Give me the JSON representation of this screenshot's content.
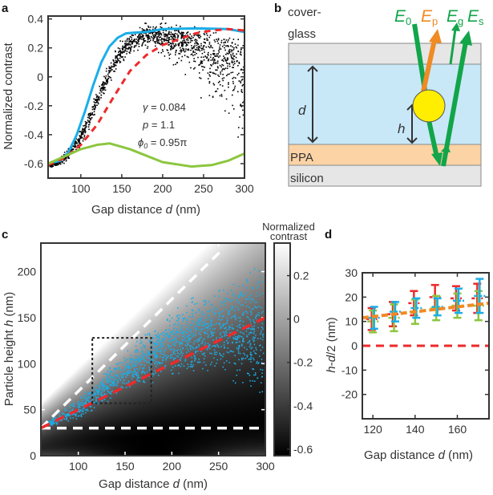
{
  "panels": {
    "a": "a",
    "b": "b",
    "c": "c",
    "d": "d"
  },
  "colors": {
    "black": "#000000",
    "blue": "#1aaee8",
    "red": "#ee2a2a",
    "green": "#8cc63f",
    "orange": "#f08a24",
    "diagram_green": "#12a54a",
    "yellow": "#ffee00"
  },
  "chart_data": [
    {
      "id": "a",
      "type": "line",
      "xlabel_pre": "Gap distance ",
      "xlabel_var": "d",
      "xlabel_post": " (nm)",
      "ylabel": "Normalized contrast",
      "xlim": [
        60,
        300
      ],
      "ylim": [
        -0.7,
        0.42
      ],
      "xticks": [
        100,
        150,
        200,
        250,
        300
      ],
      "yticks": [
        0.4,
        0.2,
        0,
        -0.2,
        -0.4,
        -0.6
      ],
      "annotations": [
        {
          "var": "γ",
          "text": " = 0.084"
        },
        {
          "var": "p",
          "text": " = 1.1"
        },
        {
          "var": "ϕ",
          "sub": "0",
          "text": " = 0.95π"
        }
      ],
      "scatter": {
        "color": "black",
        "x": [
          62,
          70,
          80,
          90,
          100,
          110,
          120,
          130,
          140,
          150,
          160,
          175,
          190,
          200,
          220,
          240,
          260,
          280,
          300
        ],
        "y": [
          -0.61,
          -0.6,
          -0.56,
          -0.5,
          -0.42,
          -0.3,
          -0.17,
          -0.03,
          0.09,
          0.17,
          0.23,
          0.28,
          0.31,
          0.32,
          0.31,
          0.3,
          0.28,
          0.25,
          0.22
        ],
        "spread": [
          0.01,
          0.015,
          0.02,
          0.03,
          0.04,
          0.05,
          0.05,
          0.05,
          0.05,
          0.05,
          0.05,
          0.05,
          0.06,
          0.09,
          0.15,
          0.2,
          0.3,
          0.4,
          0.45
        ]
      },
      "series": [
        {
          "color": "blue",
          "style": "solid",
          "x": [
            60,
            75,
            85,
            95,
            105,
            115,
            125,
            135,
            145,
            155,
            165,
            180,
            200,
            240,
            280,
            300
          ],
          "y": [
            -0.6,
            -0.58,
            -0.52,
            -0.4,
            -0.24,
            -0.06,
            0.1,
            0.21,
            0.27,
            0.3,
            0.305,
            0.31,
            0.33,
            0.335,
            0.33,
            0.31
          ]
        },
        {
          "color": "red",
          "style": "dashed",
          "x": [
            60,
            80,
            100,
            120,
            140,
            160,
            180,
            200,
            220,
            240,
            260,
            280,
            300
          ],
          "y": [
            -0.61,
            -0.56,
            -0.47,
            -0.33,
            -0.14,
            0.04,
            0.15,
            0.22,
            0.26,
            0.3,
            0.32,
            0.33,
            0.32
          ]
        },
        {
          "color": "green",
          "style": "solid",
          "x": [
            60,
            80,
            100,
            120,
            135,
            160,
            200,
            235,
            260,
            280,
            300
          ],
          "y": [
            -0.6,
            -0.55,
            -0.5,
            -0.47,
            -0.46,
            -0.5,
            -0.59,
            -0.62,
            -0.61,
            -0.58,
            -0.53
          ]
        }
      ]
    },
    {
      "id": "c",
      "type": "heatmap",
      "xlabel_pre": "Gap distance ",
      "xlabel_var": "d",
      "xlabel_post": " (nm)",
      "ylabel_pre": "Particle height ",
      "ylabel_var": "h",
      "ylabel_post": " (nm)",
      "xlim": [
        60,
        300
      ],
      "ylim": [
        0,
        231
      ],
      "xticks": [
        100,
        150,
        200,
        250,
        300
      ],
      "yticks": [
        0,
        50,
        100,
        150,
        200
      ],
      "colorbar": {
        "label_line1": "Normalized",
        "label_line2": "contrast",
        "range": [
          -0.63,
          0.35
        ],
        "ticks": [
          0.2,
          0,
          -0.2,
          -0.4,
          -0.6
        ],
        "colormap": "gray"
      },
      "lines": [
        {
          "name": "h = d - 30",
          "color": "white",
          "style": "dashed",
          "x": [
            60,
            255
          ],
          "y": [
            30,
            225
          ]
        },
        {
          "name": "h = 30",
          "color": "white",
          "style": "dashed",
          "x": [
            60,
            300
          ],
          "y": [
            30,
            30
          ]
        },
        {
          "name": "h = d/2",
          "color": "red",
          "style": "dashed",
          "x": [
            60,
            300
          ],
          "y": [
            30,
            150
          ]
        }
      ],
      "box": {
        "x": [
          115,
          178
        ],
        "y": [
          57,
          128
        ],
        "color": "black",
        "style": "dotted"
      },
      "scatter": {
        "color": "blue",
        "envelope_x": [
          60,
          100,
          150,
          200,
          250,
          300
        ],
        "envelope_hmin": [
          30,
          38,
          68,
          85,
          90,
          55
        ],
        "envelope_hmax": [
          32,
          62,
          115,
          160,
          190,
          215
        ]
      }
    },
    {
      "id": "d",
      "type": "scatter",
      "xlabel_pre": "Gap distance ",
      "xlabel_var": "d",
      "xlabel_post": " (nm)",
      "ylabel_var1": "h",
      "ylabel_mid": "-",
      "ylabel_var2": "d",
      "ylabel_post": "/2 (nm)",
      "xlim": [
        115,
        175
      ],
      "ylim": [
        -30,
        30
      ],
      "xticks": [
        120,
        140,
        160
      ],
      "yticks": [
        30,
        20,
        10,
        0,
        -10,
        -20
      ],
      "x": [
        120,
        130,
        140,
        150,
        160,
        170
      ],
      "series": [
        {
          "color": "red",
          "y": [
            11,
            13,
            17.5,
            20,
            19.5,
            19.5
          ],
          "err": [
            4.5,
            5,
            5,
            5,
            5,
            6
          ]
        },
        {
          "color": "green",
          "y": [
            10,
            11.5,
            14,
            15.5,
            16.5,
            16.5
          ],
          "err": [
            4.5,
            5.5,
            5,
            5,
            5,
            6
          ]
        },
        {
          "color": "blue",
          "y": [
            11.5,
            14,
            15.5,
            16,
            18.5,
            20.5
          ],
          "err": [
            4.5,
            4,
            4,
            3.5,
            5,
            7
          ]
        }
      ],
      "fit": {
        "color": "orange",
        "style": "dashed",
        "x": [
          115,
          175
        ],
        "y": [
          11.5,
          17.5
        ]
      },
      "zero_line": {
        "color": "red",
        "style": "dashed",
        "y": 0
      }
    }
  ],
  "diagram": {
    "cover_line1": "cover-",
    "cover_line2": "glass",
    "ppa": "PPA",
    "silicon": "silicon",
    "d": "d",
    "h": "h",
    "E": "E",
    "subs": {
      "E0": "0",
      "Ep": "p",
      "Eg": "g",
      "Es": "s"
    }
  }
}
